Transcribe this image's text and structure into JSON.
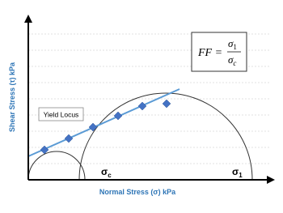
{
  "axes": {
    "y_label": "Shear Stress (τ) kPa",
    "x_label": "Normal Stress (σ) kPa"
  },
  "legend_box": "Yield Locus",
  "formula": {
    "lhs": "FF =",
    "numerator": "σ",
    "numerator_sub": "1",
    "denominator": "σ",
    "denominator_sub": "c"
  },
  "circle_labels": [
    {
      "symbol": "σ",
      "sub": "c"
    },
    {
      "symbol": "σ",
      "sub": "1"
    }
  ]
}
